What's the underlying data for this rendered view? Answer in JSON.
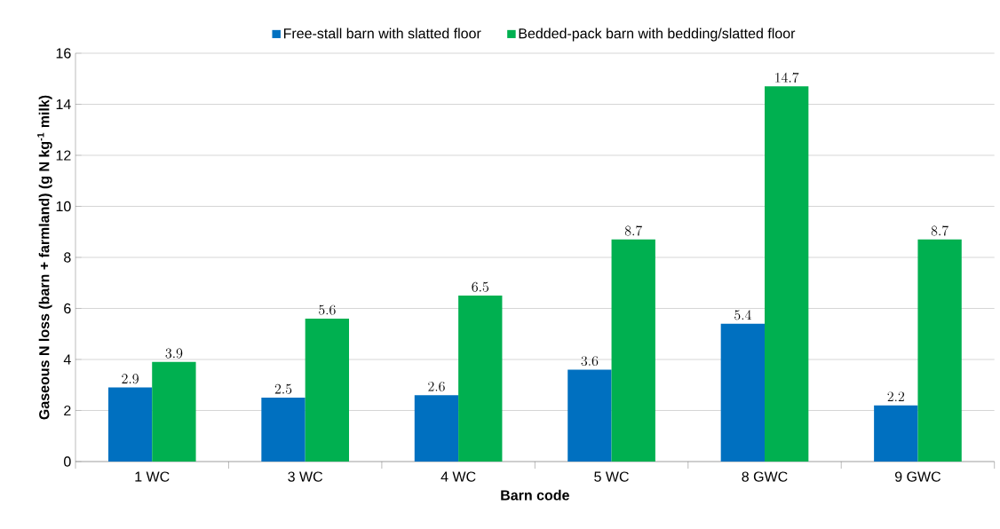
{
  "chart_data": {
    "type": "bar",
    "xlabel": "Barn code",
    "ylabel": "**Gaseous N loss (barn + farmland) (g N kg$^{-1}$ milk)**",
    "categories": [
      "1 WC",
      "3 WC",
      "4 WC",
      "5 WC",
      "8 GWC",
      "9 GWC"
    ],
    "series": [
      {
        "name": "Free-stall barn with slatted floor",
        "color": "#0070c0",
        "values": [
          2.9,
          2.5,
          2.6,
          3.6,
          5.4,
          2.2
        ]
      },
      {
        "name": "Bedded-pack barn with bedding/slatted floor",
        "color": "#00b050",
        "values": [
          3.9,
          5.6,
          6.5,
          8.7,
          14.7,
          8.7
        ]
      }
    ],
    "ylim": [
      0,
      16
    ],
    "yticks": [
      0,
      2,
      4,
      6,
      8,
      10,
      12,
      14,
      16
    ],
    "grid": "y",
    "legend": "top",
    "data_labels": true
  }
}
